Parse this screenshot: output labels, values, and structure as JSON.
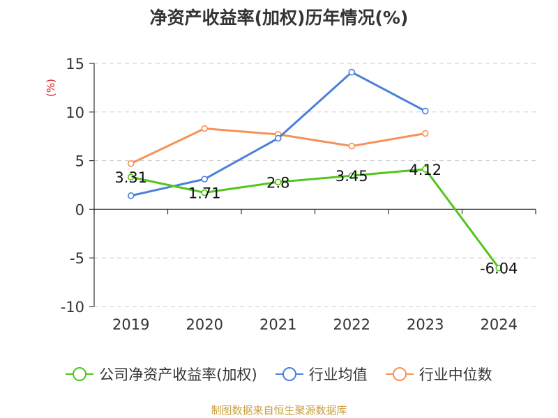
{
  "chart_data": {
    "type": "line",
    "title": "净资产收益率(加权)历年情况(%)",
    "ylabel": "(%)",
    "xlabel": "",
    "categories": [
      "2019",
      "2020",
      "2021",
      "2022",
      "2023",
      "2024"
    ],
    "ylim": [
      -10,
      15
    ],
    "yticks": [
      15,
      10,
      5,
      0,
      -5,
      -10
    ],
    "grid": true,
    "legend_position": "bottom",
    "series": [
      {
        "name": "公司净资产收益率(加权)",
        "color": "#52c41a",
        "values": [
          3.31,
          1.71,
          2.8,
          3.45,
          4.12,
          -6.04
        ],
        "labels": [
          "3.31",
          "1.71",
          "2.8",
          "3.45",
          "4.12",
          "-6.04"
        ]
      },
      {
        "name": "行业均值",
        "color": "#4a7fdc",
        "values": [
          1.4,
          3.1,
          7.3,
          14.1,
          10.1,
          null
        ]
      },
      {
        "name": "行业中位数",
        "color": "#f79155",
        "values": [
          4.7,
          8.3,
          7.7,
          6.5,
          7.8,
          null
        ]
      }
    ]
  },
  "footer": {
    "source": "制图数据来自恒生聚源数据库"
  }
}
